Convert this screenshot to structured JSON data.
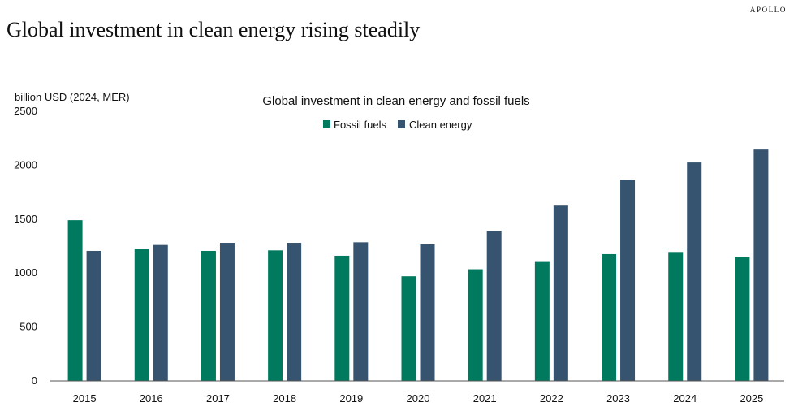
{
  "brand": "APOLLO",
  "headline": "Global investment in clean energy rising steadily",
  "colors": {
    "fossil": "#007a5e",
    "clean": "#36546f"
  },
  "chart_data": {
    "type": "bar",
    "title": "Global investment in clean energy and fossil fuels",
    "ylabel": "billion USD (2024, MER)",
    "xlabel": "",
    "ylim": [
      0,
      2500
    ],
    "yticks": [
      0,
      500,
      1000,
      1500,
      2000,
      2500
    ],
    "legend": "top-center",
    "grid": false,
    "categories": [
      "2015",
      "2016",
      "2017",
      "2018",
      "2019",
      "2020",
      "2021",
      "2022",
      "2023",
      "2024",
      "2025"
    ],
    "series": [
      {
        "name": "Fossil fuels",
        "values": [
          1490,
          1225,
          1205,
          1210,
          1160,
          970,
          1035,
          1110,
          1175,
          1195,
          1145
        ]
      },
      {
        "name": "Clean energy",
        "values": [
          1205,
          1260,
          1280,
          1280,
          1285,
          1265,
          1390,
          1625,
          1865,
          2025,
          2145
        ]
      }
    ]
  }
}
